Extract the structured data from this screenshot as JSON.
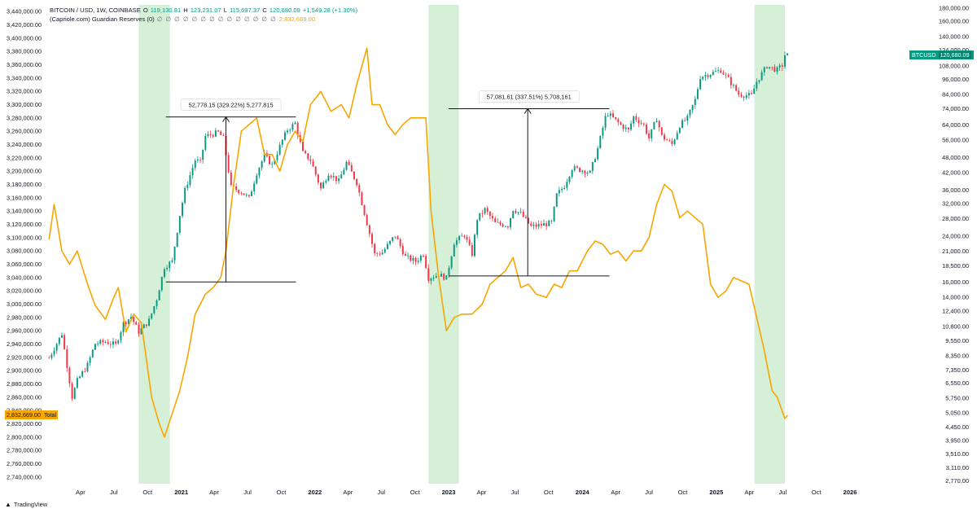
{
  "header": {
    "symbol_line": "BITCOIN / USD, 1W, COINBASE",
    "open_label": "O",
    "open_value": "119,130.81",
    "high_label": "H",
    "high_value": "123,231.07",
    "low_label": "L",
    "low_value": "115,697.37",
    "close_label": "C",
    "close_value": "120,680.09",
    "change": "+1,549.28 (+1.30%)",
    "indicator_line": "(Capriole.com) Guardian Reserves (0)",
    "indicator_dots": "∅ ∅ ∅ ∅ ∅ ∅ ∅ ∅ ∅ ∅ ∅ ∅ ∅ ∅",
    "indicator_value": "2,832,669.00"
  },
  "price_tag": {
    "symbol": "BTCUSD",
    "value": "120,680.09"
  },
  "total_tag": {
    "value": "2,832,669.00",
    "label": "Total"
  },
  "footer": {
    "brand": "TradingView"
  },
  "colors": {
    "up": "#089981",
    "down": "#f23645",
    "reserves": "#f7a600",
    "shade": "#d6f0d8",
    "grid": "#f0f3fa"
  },
  "chart_data": {
    "type": "line",
    "left_axis": {
      "label": "Guardian Reserves",
      "min": 2730000,
      "max": 3450000,
      "ticks": [
        "3,440,000.00",
        "3,420,000.00",
        "3,400,000.00",
        "3,380,000.00",
        "3,360,000.00",
        "3,340,000.00",
        "3,320,000.00",
        "3,300,000.00",
        "3,280,000.00",
        "3,260,000.00",
        "3,240,000.00",
        "3,220,000.00",
        "3,200,000.00",
        "3,180,000.00",
        "3,160,000.00",
        "3,140,000.00",
        "3,120,000.00",
        "3,100,000.00",
        "3,080,000.00",
        "3,060,000.00",
        "3,040,000.00",
        "3,020,000.00",
        "3,000,000.00",
        "2,980,000.00",
        "2,960,000.00",
        "2,940,000.00",
        "2,920,000.00",
        "2,900,000.00",
        "2,880,000.00",
        "2,860,000.00",
        "2,840,000.00",
        "2,820,000.00",
        "2,800,000.00",
        "2,780,000.00",
        "2,760,000.00",
        "2,740,000.00"
      ]
    },
    "right_axis": {
      "label": "BTCUSD",
      "scale": "log",
      "ticks": [
        "180,000.00",
        "160,000.00",
        "140,000.00",
        "124,000.00",
        "108,000.00",
        "96,000.00",
        "84,000.00",
        "74,000.00",
        "64,000.00",
        "56,000.00",
        "48,000.00",
        "42,000.00",
        "36,000.00",
        "32,000.00",
        "28,000.00",
        "24,000.00",
        "21,000.00",
        "18,500.00",
        "16,000.00",
        "14,000.00",
        "12,400.00",
        "10,800.00",
        "9,550.00",
        "8,350.00",
        "7,350.00",
        "6,550.00",
        "5,750.00",
        "5,050.00",
        "4,450.00",
        "3,950.00",
        "3,510.00",
        "3,110.00",
        "2,770.00"
      ]
    },
    "x_axis": {
      "start": "2020-01-01",
      "end": "2026-06-01",
      "ticks": [
        {
          "label": "Apr",
          "date": "2020-04-01",
          "bold": false
        },
        {
          "label": "Jul",
          "date": "2020-07-01",
          "bold": false
        },
        {
          "label": "Oct",
          "date": "2020-10-01",
          "bold": false
        },
        {
          "label": "2021",
          "date": "2021-01-01",
          "bold": true
        },
        {
          "label": "Apr",
          "date": "2021-04-01",
          "bold": false
        },
        {
          "label": "Jul",
          "date": "2021-07-01",
          "bold": false
        },
        {
          "label": "Oct",
          "date": "2021-10-01",
          "bold": false
        },
        {
          "label": "2022",
          "date": "2022-01-01",
          "bold": true
        },
        {
          "label": "Apr",
          "date": "2022-04-01",
          "bold": false
        },
        {
          "label": "Jul",
          "date": "2022-07-01",
          "bold": false
        },
        {
          "label": "Oct",
          "date": "2022-10-01",
          "bold": false
        },
        {
          "label": "2023",
          "date": "2023-01-01",
          "bold": true
        },
        {
          "label": "Apr",
          "date": "2023-04-01",
          "bold": false
        },
        {
          "label": "Jul",
          "date": "2023-07-01",
          "bold": false
        },
        {
          "label": "Oct",
          "date": "2023-10-01",
          "bold": false
        },
        {
          "label": "2024",
          "date": "2024-01-01",
          "bold": true
        },
        {
          "label": "Apr",
          "date": "2024-04-01",
          "bold": false
        },
        {
          "label": "Jul",
          "date": "2024-07-01",
          "bold": false
        },
        {
          "label": "Oct",
          "date": "2024-10-01",
          "bold": false
        },
        {
          "label": "2025",
          "date": "2025-01-01",
          "bold": true
        },
        {
          "label": "Apr",
          "date": "2025-04-01",
          "bold": false
        },
        {
          "label": "Jul",
          "date": "2025-07-01",
          "bold": false
        },
        {
          "label": "Oct",
          "date": "2025-10-01",
          "bold": false
        },
        {
          "label": "2026",
          "date": "2026-01-01",
          "bold": true
        }
      ]
    },
    "shaded_periods": [
      {
        "start": "2020-09-07",
        "end": "2020-12-01"
      },
      {
        "start": "2022-11-07",
        "end": "2023-01-29"
      },
      {
        "start": "2025-04-15",
        "end": "2025-07-07"
      }
    ],
    "measurements": [
      {
        "label": "52,778.15 (329.22%) 5,277,815",
        "start": "2020-11-20",
        "end": "2021-11-10",
        "arrow_at": "2021-05-03",
        "from_price": 16030,
        "to_price": 68800
      },
      {
        "label": "57,081.61 (337.51%) 5,708,161",
        "start": "2023-01-01",
        "end": "2024-03-15",
        "arrow_at": "2023-08-05",
        "from_price": 16900,
        "to_price": 73990
      }
    ],
    "btc_weekly_close": [
      {
        "d": "2020-01-06",
        "v": 8200
      },
      {
        "d": "2020-02-10",
        "v": 10150
      },
      {
        "d": "2020-03-09",
        "v": 5800
      },
      {
        "d": "2020-03-23",
        "v": 6700
      },
      {
        "d": "2020-04-20",
        "v": 7700
      },
      {
        "d": "2020-05-11",
        "v": 9300
      },
      {
        "d": "2020-06-08",
        "v": 9450
      },
      {
        "d": "2020-07-06",
        "v": 9200
      },
      {
        "d": "2020-07-27",
        "v": 11100
      },
      {
        "d": "2020-08-17",
        "v": 11800
      },
      {
        "d": "2020-09-07",
        "v": 10300
      },
      {
        "d": "2020-10-05",
        "v": 11400
      },
      {
        "d": "2020-10-26",
        "v": 13800
      },
      {
        "d": "2020-11-16",
        "v": 18300
      },
      {
        "d": "2020-12-07",
        "v": 19200
      },
      {
        "d": "2020-12-28",
        "v": 29000
      },
      {
        "d": "2021-01-11",
        "v": 36000
      },
      {
        "d": "2021-02-08",
        "v": 47000
      },
      {
        "d": "2021-02-22",
        "v": 46000
      },
      {
        "d": "2021-03-08",
        "v": 58000
      },
      {
        "d": "2021-04-12",
        "v": 60000
      },
      {
        "d": "2021-04-26",
        "v": 57000
      },
      {
        "d": "2021-05-17",
        "v": 37000
      },
      {
        "d": "2021-06-14",
        "v": 35500
      },
      {
        "d": "2021-07-05",
        "v": 33500
      },
      {
        "d": "2021-07-26",
        "v": 42000
      },
      {
        "d": "2021-08-16",
        "v": 49000
      },
      {
        "d": "2021-09-06",
        "v": 45000
      },
      {
        "d": "2021-10-04",
        "v": 56000
      },
      {
        "d": "2021-10-18",
        "v": 61500
      },
      {
        "d": "2021-11-08",
        "v": 65000
      },
      {
        "d": "2021-11-29",
        "v": 50000
      },
      {
        "d": "2021-12-20",
        "v": 47000
      },
      {
        "d": "2022-01-17",
        "v": 36500
      },
      {
        "d": "2022-02-07",
        "v": 42000
      },
      {
        "d": "2022-03-07",
        "v": 39000
      },
      {
        "d": "2022-03-28",
        "v": 46000
      },
      {
        "d": "2022-04-25",
        "v": 38500
      },
      {
        "d": "2022-05-16",
        "v": 29500
      },
      {
        "d": "2022-06-13",
        "v": 20500
      },
      {
        "d": "2022-07-04",
        "v": 20800
      },
      {
        "d": "2022-08-08",
        "v": 24200
      },
      {
        "d": "2022-09-05",
        "v": 20000
      },
      {
        "d": "2022-10-03",
        "v": 19200
      },
      {
        "d": "2022-10-24",
        "v": 20600
      },
      {
        "d": "2022-11-07",
        "v": 16600
      },
      {
        "d": "2022-12-05",
        "v": 17100
      },
      {
        "d": "2022-12-26",
        "v": 16600
      },
      {
        "d": "2023-01-16",
        "v": 22700
      },
      {
        "d": "2023-02-13",
        "v": 24300
      },
      {
        "d": "2023-03-06",
        "v": 20500
      },
      {
        "d": "2023-03-20",
        "v": 28000
      },
      {
        "d": "2023-04-10",
        "v": 30400
      },
      {
        "d": "2023-05-08",
        "v": 26900
      },
      {
        "d": "2023-06-12",
        "v": 26400
      },
      {
        "d": "2023-06-26",
        "v": 30500
      },
      {
        "d": "2023-07-17",
        "v": 29300
      },
      {
        "d": "2023-08-14",
        "v": 26100
      },
      {
        "d": "2023-09-11",
        "v": 26500
      },
      {
        "d": "2023-10-09",
        "v": 27000
      },
      {
        "d": "2023-10-23",
        "v": 34500
      },
      {
        "d": "2023-11-13",
        "v": 37500
      },
      {
        "d": "2023-12-04",
        "v": 43800
      },
      {
        "d": "2024-01-08",
        "v": 42800
      },
      {
        "d": "2024-01-22",
        "v": 42000
      },
      {
        "d": "2024-02-12",
        "v": 52000
      },
      {
        "d": "2024-03-04",
        "v": 68500
      },
      {
        "d": "2024-03-11",
        "v": 70900
      },
      {
        "d": "2024-04-15",
        "v": 64000
      },
      {
        "d": "2024-05-06",
        "v": 61000
      },
      {
        "d": "2024-05-20",
        "v": 69000
      },
      {
        "d": "2024-06-17",
        "v": 64000
      },
      {
        "d": "2024-07-01",
        "v": 57000
      },
      {
        "d": "2024-07-22",
        "v": 68000
      },
      {
        "d": "2024-08-05",
        "v": 58000
      },
      {
        "d": "2024-09-02",
        "v": 54000
      },
      {
        "d": "2024-09-23",
        "v": 64000
      },
      {
        "d": "2024-10-14",
        "v": 68000
      },
      {
        "d": "2024-11-04",
        "v": 80000
      },
      {
        "d": "2024-11-18",
        "v": 98000
      },
      {
        "d": "2024-12-16",
        "v": 101000
      },
      {
        "d": "2025-01-13",
        "v": 104000
      },
      {
        "d": "2025-02-03",
        "v": 96000
      },
      {
        "d": "2025-03-03",
        "v": 84000
      },
      {
        "d": "2025-04-07",
        "v": 83000
      },
      {
        "d": "2025-04-21",
        "v": 94000
      },
      {
        "d": "2025-05-19",
        "v": 108000
      },
      {
        "d": "2025-06-16",
        "v": 104000
      },
      {
        "d": "2025-06-30",
        "v": 108500
      },
      {
        "d": "2025-07-07",
        "v": 119000
      },
      {
        "d": "2025-07-14",
        "v": 120680
      }
    ],
    "reserves": [
      {
        "d": "2020-01-06",
        "v": 3097000
      },
      {
        "d": "2020-01-20",
        "v": 3150000
      },
      {
        "d": "2020-02-10",
        "v": 3080000
      },
      {
        "d": "2020-03-02",
        "v": 3060000
      },
      {
        "d": "2020-03-23",
        "v": 3080000
      },
      {
        "d": "2020-04-20",
        "v": 3030000
      },
      {
        "d": "2020-05-11",
        "v": 2998000
      },
      {
        "d": "2020-06-08",
        "v": 2977000
      },
      {
        "d": "2020-06-29",
        "v": 3008000
      },
      {
        "d": "2020-07-13",
        "v": 3025000
      },
      {
        "d": "2020-08-03",
        "v": 2958000
      },
      {
        "d": "2020-08-24",
        "v": 2985000
      },
      {
        "d": "2020-09-14",
        "v": 2972000
      },
      {
        "d": "2020-10-12",
        "v": 2860000
      },
      {
        "d": "2020-11-02",
        "v": 2820000
      },
      {
        "d": "2020-11-16",
        "v": 2800000
      },
      {
        "d": "2020-12-07",
        "v": 2835000
      },
      {
        "d": "2020-12-28",
        "v": 2870000
      },
      {
        "d": "2021-01-18",
        "v": 2920000
      },
      {
        "d": "2021-02-08",
        "v": 2985000
      },
      {
        "d": "2021-03-08",
        "v": 3015000
      },
      {
        "d": "2021-03-29",
        "v": 3025000
      },
      {
        "d": "2021-04-19",
        "v": 3040000
      },
      {
        "d": "2021-05-03",
        "v": 3080000
      },
      {
        "d": "2021-05-24",
        "v": 3180000
      },
      {
        "d": "2021-06-14",
        "v": 3260000
      },
      {
        "d": "2021-07-05",
        "v": 3270000
      },
      {
        "d": "2021-07-26",
        "v": 3280000
      },
      {
        "d": "2021-08-16",
        "v": 3225000
      },
      {
        "d": "2021-09-06",
        "v": 3225000
      },
      {
        "d": "2021-09-27",
        "v": 3200000
      },
      {
        "d": "2021-10-18",
        "v": 3240000
      },
      {
        "d": "2021-11-08",
        "v": 3260000
      },
      {
        "d": "2021-11-29",
        "v": 3245000
      },
      {
        "d": "2021-12-20",
        "v": 3300000
      },
      {
        "d": "2022-01-17",
        "v": 3320000
      },
      {
        "d": "2022-02-14",
        "v": 3290000
      },
      {
        "d": "2022-03-14",
        "v": 3300000
      },
      {
        "d": "2022-04-04",
        "v": 3280000
      },
      {
        "d": "2022-04-25",
        "v": 3330000
      },
      {
        "d": "2022-05-23",
        "v": 3385000
      },
      {
        "d": "2022-06-06",
        "v": 3300000
      },
      {
        "d": "2022-06-27",
        "v": 3300000
      },
      {
        "d": "2022-07-18",
        "v": 3270000
      },
      {
        "d": "2022-08-08",
        "v": 3255000
      },
      {
        "d": "2022-08-29",
        "v": 3270000
      },
      {
        "d": "2022-09-19",
        "v": 3280000
      },
      {
        "d": "2022-10-10",
        "v": 3280000
      },
      {
        "d": "2022-10-31",
        "v": 3280000
      },
      {
        "d": "2022-11-14",
        "v": 3140000
      },
      {
        "d": "2022-12-05",
        "v": 3040000
      },
      {
        "d": "2022-12-26",
        "v": 2960000
      },
      {
        "d": "2023-01-16",
        "v": 2980000
      },
      {
        "d": "2023-02-06",
        "v": 2985000
      },
      {
        "d": "2023-03-06",
        "v": 2985000
      },
      {
        "d": "2023-04-03",
        "v": 3000000
      },
      {
        "d": "2023-04-24",
        "v": 3030000
      },
      {
        "d": "2023-05-15",
        "v": 3040000
      },
      {
        "d": "2023-06-05",
        "v": 3050000
      },
      {
        "d": "2023-06-26",
        "v": 3070000
      },
      {
        "d": "2023-07-17",
        "v": 3025000
      },
      {
        "d": "2023-08-07",
        "v": 3030000
      },
      {
        "d": "2023-08-28",
        "v": 3015000
      },
      {
        "d": "2023-09-25",
        "v": 3010000
      },
      {
        "d": "2023-10-16",
        "v": 3030000
      },
      {
        "d": "2023-11-06",
        "v": 3025000
      },
      {
        "d": "2023-11-27",
        "v": 3050000
      },
      {
        "d": "2023-12-18",
        "v": 3050000
      },
      {
        "d": "2024-01-15",
        "v": 3080000
      },
      {
        "d": "2024-02-05",
        "v": 3095000
      },
      {
        "d": "2024-02-26",
        "v": 3090000
      },
      {
        "d": "2024-03-18",
        "v": 3075000
      },
      {
        "d": "2024-04-08",
        "v": 3080000
      },
      {
        "d": "2024-04-29",
        "v": 3065000
      },
      {
        "d": "2024-05-20",
        "v": 3080000
      },
      {
        "d": "2024-06-10",
        "v": 3080000
      },
      {
        "d": "2024-07-01",
        "v": 3100000
      },
      {
        "d": "2024-07-22",
        "v": 3150000
      },
      {
        "d": "2024-08-12",
        "v": 3180000
      },
      {
        "d": "2024-09-02",
        "v": 3170000
      },
      {
        "d": "2024-09-23",
        "v": 3130000
      },
      {
        "d": "2024-10-14",
        "v": 3140000
      },
      {
        "d": "2024-11-04",
        "v": 3130000
      },
      {
        "d": "2024-11-25",
        "v": 3120000
      },
      {
        "d": "2024-12-16",
        "v": 3030000
      },
      {
        "d": "2025-01-06",
        "v": 3010000
      },
      {
        "d": "2025-01-27",
        "v": 3020000
      },
      {
        "d": "2025-02-17",
        "v": 3040000
      },
      {
        "d": "2025-03-10",
        "v": 3035000
      },
      {
        "d": "2025-03-31",
        "v": 3030000
      },
      {
        "d": "2025-04-21",
        "v": 2980000
      },
      {
        "d": "2025-05-12",
        "v": 2930000
      },
      {
        "d": "2025-06-02",
        "v": 2870000
      },
      {
        "d": "2025-06-16",
        "v": 2860000
      },
      {
        "d": "2025-07-07",
        "v": 2828000
      },
      {
        "d": "2025-07-14",
        "v": 2832669
      }
    ]
  }
}
